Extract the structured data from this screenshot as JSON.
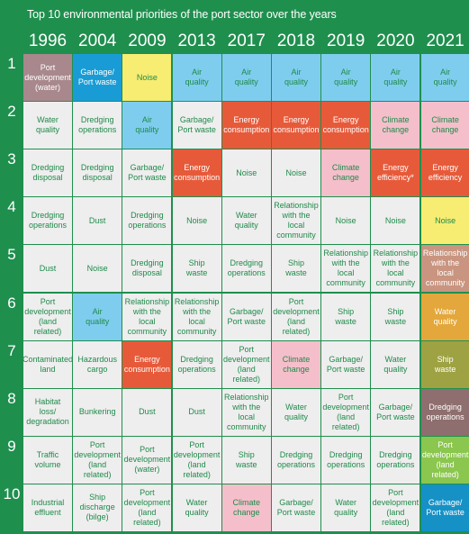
{
  "title": "Top 10  environmental priorities of the port sector over the years",
  "years": [
    "1996",
    "2004",
    "2009",
    "2013",
    "2017",
    "2018",
    "2019",
    "2020",
    "2021"
  ],
  "ranks": [
    "1",
    "2",
    "3",
    "4",
    "5",
    "6",
    "7",
    "8",
    "9",
    "10"
  ],
  "colors": {
    "background": "#1f8f4e",
    "default_cell": "#eeeeee",
    "default_text": "#1f8a4a",
    "air_quality": "#7fcdee",
    "garbage_waste": "#199cd6",
    "noise": "#f7ed72",
    "energy": "#e65a3a",
    "climate": "#f4bfcb",
    "port_development_1996": "#a8888c",
    "relationship_2021": "#c99580",
    "water_quality_2021": "#e3a73b",
    "ship_waste_2021": "#9ea242",
    "dredging_2021": "#8e6e6e",
    "port_dev_2021": "#8bc64e",
    "garbage_2021": "#1591c6"
  },
  "grid": [
    [
      {
        "lines": [
          "Port",
          "development",
          "(water)"
        ],
        "color": "#a8888c",
        "text": "#ffffff"
      },
      {
        "lines": [
          "Garbage/",
          "Port waste"
        ],
        "color": "#199cd6",
        "text": "#ffffff"
      },
      {
        "lines": [
          "Noise"
        ],
        "color": "#f7ed72",
        "text": "#1f8a4a"
      },
      {
        "lines": [
          "Air",
          "quality"
        ],
        "color": "#7fcdee",
        "text": "#1f8a4a"
      },
      {
        "lines": [
          "Air",
          "quality"
        ],
        "color": "#7fcdee",
        "text": "#1f8a4a"
      },
      {
        "lines": [
          "Air",
          "quality"
        ],
        "color": "#7fcdee",
        "text": "#1f8a4a"
      },
      {
        "lines": [
          "Air",
          "quality"
        ],
        "color": "#7fcdee",
        "text": "#1f8a4a"
      },
      {
        "lines": [
          "Air",
          "quality"
        ],
        "color": "#7fcdee",
        "text": "#1f8a4a"
      },
      {
        "lines": [
          "Air",
          "quality"
        ],
        "color": "#7fcdee",
        "text": "#1f8a4a"
      }
    ],
    [
      {
        "lines": [
          "Water",
          "quality"
        ],
        "color": "#eeeeee",
        "text": "#1f8a4a"
      },
      {
        "lines": [
          "Dredging",
          "operations"
        ],
        "color": "#eeeeee",
        "text": "#1f8a4a"
      },
      {
        "lines": [
          "Air",
          "quality"
        ],
        "color": "#7fcdee",
        "text": "#1f8a4a"
      },
      {
        "lines": [
          "Garbage/",
          "Port waste"
        ],
        "color": "#eeeeee",
        "text": "#1f8a4a"
      },
      {
        "lines": [
          "Energy",
          "consumption"
        ],
        "color": "#e65a3a",
        "text": "#ffffff"
      },
      {
        "lines": [
          "Energy",
          "consumption"
        ],
        "color": "#e65a3a",
        "text": "#ffffff"
      },
      {
        "lines": [
          "Energy",
          "consumption"
        ],
        "color": "#e65a3a",
        "text": "#ffffff"
      },
      {
        "lines": [
          "Climate",
          "change"
        ],
        "color": "#f4bfcb",
        "text": "#1f8a4a"
      },
      {
        "lines": [
          "Climate",
          "change"
        ],
        "color": "#f4bfcb",
        "text": "#1f8a4a"
      }
    ],
    [
      {
        "lines": [
          "Dredging",
          "disposal"
        ],
        "color": "#eeeeee",
        "text": "#1f8a4a"
      },
      {
        "lines": [
          "Dredging",
          "disposal"
        ],
        "color": "#eeeeee",
        "text": "#1f8a4a"
      },
      {
        "lines": [
          "Garbage/",
          "Port waste"
        ],
        "color": "#eeeeee",
        "text": "#1f8a4a"
      },
      {
        "lines": [
          "Energy",
          "consumption"
        ],
        "color": "#e65a3a",
        "text": "#ffffff"
      },
      {
        "lines": [
          "Noise"
        ],
        "color": "#eeeeee",
        "text": "#1f8a4a"
      },
      {
        "lines": [
          "Noise"
        ],
        "color": "#eeeeee",
        "text": "#1f8a4a"
      },
      {
        "lines": [
          "Climate",
          "change"
        ],
        "color": "#f4bfcb",
        "text": "#1f8a4a"
      },
      {
        "lines": [
          "Energy",
          "efficiency*"
        ],
        "color": "#e65a3a",
        "text": "#ffffff"
      },
      {
        "lines": [
          "Energy",
          "efficiency"
        ],
        "color": "#e65a3a",
        "text": "#ffffff"
      }
    ],
    [
      {
        "lines": [
          "Dredging",
          "operations"
        ],
        "color": "#eeeeee",
        "text": "#1f8a4a"
      },
      {
        "lines": [
          "Dust"
        ],
        "color": "#eeeeee",
        "text": "#1f8a4a"
      },
      {
        "lines": [
          "Dredging",
          "operations"
        ],
        "color": "#eeeeee",
        "text": "#1f8a4a"
      },
      {
        "lines": [
          "Noise"
        ],
        "color": "#eeeeee",
        "text": "#1f8a4a"
      },
      {
        "lines": [
          "Water",
          "quality"
        ],
        "color": "#eeeeee",
        "text": "#1f8a4a"
      },
      {
        "lines": [
          "Relationship",
          "with the local",
          "community"
        ],
        "color": "#eeeeee",
        "text": "#1f8a4a"
      },
      {
        "lines": [
          "Noise"
        ],
        "color": "#eeeeee",
        "text": "#1f8a4a"
      },
      {
        "lines": [
          "Noise"
        ],
        "color": "#eeeeee",
        "text": "#1f8a4a"
      },
      {
        "lines": [
          "Noise"
        ],
        "color": "#f7ed72",
        "text": "#1f8a4a"
      }
    ],
    [
      {
        "lines": [
          "Dust"
        ],
        "color": "#eeeeee",
        "text": "#1f8a4a"
      },
      {
        "lines": [
          "Noise"
        ],
        "color": "#eeeeee",
        "text": "#1f8a4a"
      },
      {
        "lines": [
          "Dredging",
          "disposal"
        ],
        "color": "#eeeeee",
        "text": "#1f8a4a"
      },
      {
        "lines": [
          "Ship",
          "waste"
        ],
        "color": "#eeeeee",
        "text": "#1f8a4a"
      },
      {
        "lines": [
          "Dredging",
          "operations"
        ],
        "color": "#eeeeee",
        "text": "#1f8a4a"
      },
      {
        "lines": [
          "Ship",
          "waste"
        ],
        "color": "#eeeeee",
        "text": "#1f8a4a"
      },
      {
        "lines": [
          "Relationship",
          "with the local",
          "community"
        ],
        "color": "#eeeeee",
        "text": "#1f8a4a"
      },
      {
        "lines": [
          "Relationship",
          "with the local",
          "community"
        ],
        "color": "#eeeeee",
        "text": "#1f8a4a"
      },
      {
        "lines": [
          "Relationship",
          "with the local",
          "community"
        ],
        "color": "#c99580",
        "text": "#ffffff"
      }
    ],
    [
      {
        "lines": [
          "Port",
          "development",
          "(land related)"
        ],
        "color": "#eeeeee",
        "text": "#1f8a4a"
      },
      {
        "lines": [
          "Air",
          "quality"
        ],
        "color": "#7fcdee",
        "text": "#1f8a4a"
      },
      {
        "lines": [
          "Relationship",
          "with the local",
          "community"
        ],
        "color": "#eeeeee",
        "text": "#1f8a4a"
      },
      {
        "lines": [
          "Relationship",
          "with the local",
          "community"
        ],
        "color": "#eeeeee",
        "text": "#1f8a4a"
      },
      {
        "lines": [
          "Garbage/",
          "Port waste"
        ],
        "color": "#eeeeee",
        "text": "#1f8a4a"
      },
      {
        "lines": [
          "Port",
          "development",
          "(land related)"
        ],
        "color": "#eeeeee",
        "text": "#1f8a4a"
      },
      {
        "lines": [
          "Ship",
          "waste"
        ],
        "color": "#eeeeee",
        "text": "#1f8a4a"
      },
      {
        "lines": [
          "Ship",
          "waste"
        ],
        "color": "#eeeeee",
        "text": "#1f8a4a"
      },
      {
        "lines": [
          "Water",
          "quality"
        ],
        "color": "#e3a73b",
        "text": "#ffffff"
      }
    ],
    [
      {
        "lines": [
          "Contaminated",
          "land"
        ],
        "color": "#eeeeee",
        "text": "#1f8a4a"
      },
      {
        "lines": [
          "Hazardous",
          "cargo"
        ],
        "color": "#eeeeee",
        "text": "#1f8a4a"
      },
      {
        "lines": [
          "Energy",
          "consumption"
        ],
        "color": "#e65a3a",
        "text": "#ffffff"
      },
      {
        "lines": [
          "Dredging",
          "operations"
        ],
        "color": "#eeeeee",
        "text": "#1f8a4a"
      },
      {
        "lines": [
          "Port",
          "development",
          "(land related)"
        ],
        "color": "#eeeeee",
        "text": "#1f8a4a"
      },
      {
        "lines": [
          "Climate",
          "change"
        ],
        "color": "#f4bfcb",
        "text": "#1f8a4a"
      },
      {
        "lines": [
          "Garbage/",
          "Port waste"
        ],
        "color": "#eeeeee",
        "text": "#1f8a4a"
      },
      {
        "lines": [
          "Water",
          "quality"
        ],
        "color": "#eeeeee",
        "text": "#1f8a4a"
      },
      {
        "lines": [
          "Ship",
          "waste"
        ],
        "color": "#9ea242",
        "text": "#ffffff"
      }
    ],
    [
      {
        "lines": [
          "Habitat",
          "loss/",
          "degradation"
        ],
        "color": "#eeeeee",
        "text": "#1f8a4a"
      },
      {
        "lines": [
          "Bunkering"
        ],
        "color": "#eeeeee",
        "text": "#1f8a4a"
      },
      {
        "lines": [
          "Dust"
        ],
        "color": "#eeeeee",
        "text": "#1f8a4a"
      },
      {
        "lines": [
          "Dust"
        ],
        "color": "#eeeeee",
        "text": "#1f8a4a"
      },
      {
        "lines": [
          "Relationship",
          "with the local",
          "community"
        ],
        "color": "#eeeeee",
        "text": "#1f8a4a"
      },
      {
        "lines": [
          "Water",
          "quality"
        ],
        "color": "#eeeeee",
        "text": "#1f8a4a"
      },
      {
        "lines": [
          "Port",
          "development",
          "(land related)"
        ],
        "color": "#eeeeee",
        "text": "#1f8a4a"
      },
      {
        "lines": [
          "Garbage/",
          "Port waste"
        ],
        "color": "#eeeeee",
        "text": "#1f8a4a"
      },
      {
        "lines": [
          "Dredging",
          "operations"
        ],
        "color": "#8e6e6e",
        "text": "#ffffff"
      }
    ],
    [
      {
        "lines": [
          "Traffic",
          "volume"
        ],
        "color": "#eeeeee",
        "text": "#1f8a4a"
      },
      {
        "lines": [
          "Port",
          "development",
          "(land related)"
        ],
        "color": "#eeeeee",
        "text": "#1f8a4a"
      },
      {
        "lines": [
          "Port",
          "development",
          "(water)"
        ],
        "color": "#eeeeee",
        "text": "#1f8a4a"
      },
      {
        "lines": [
          "Port",
          "development",
          "(land related)"
        ],
        "color": "#eeeeee",
        "text": "#1f8a4a"
      },
      {
        "lines": [
          "Ship",
          "waste"
        ],
        "color": "#eeeeee",
        "text": "#1f8a4a"
      },
      {
        "lines": [
          "Dredging",
          "operations"
        ],
        "color": "#eeeeee",
        "text": "#1f8a4a"
      },
      {
        "lines": [
          "Dredging",
          "operations"
        ],
        "color": "#eeeeee",
        "text": "#1f8a4a"
      },
      {
        "lines": [
          "Dredging",
          "operations"
        ],
        "color": "#eeeeee",
        "text": "#1f8a4a"
      },
      {
        "lines": [
          "Port",
          "development",
          "(land related)"
        ],
        "color": "#8bc64e",
        "text": "#ffffff"
      }
    ],
    [
      {
        "lines": [
          "Industrial",
          "effluent"
        ],
        "color": "#eeeeee",
        "text": "#1f8a4a"
      },
      {
        "lines": [
          "Ship",
          "discharge",
          "(bilge)"
        ],
        "color": "#eeeeee",
        "text": "#1f8a4a"
      },
      {
        "lines": [
          "Port",
          "development",
          "(land related)"
        ],
        "color": "#eeeeee",
        "text": "#1f8a4a"
      },
      {
        "lines": [
          "Water",
          "quality"
        ],
        "color": "#eeeeee",
        "text": "#1f8a4a"
      },
      {
        "lines": [
          "Climate",
          "change"
        ],
        "color": "#f4bfcb",
        "text": "#1f8a4a"
      },
      {
        "lines": [
          "Garbage/",
          "Port waste"
        ],
        "color": "#eeeeee",
        "text": "#1f8a4a"
      },
      {
        "lines": [
          "Water",
          "quality"
        ],
        "color": "#eeeeee",
        "text": "#1f8a4a"
      },
      {
        "lines": [
          "Port",
          "development",
          "(land related)"
        ],
        "color": "#eeeeee",
        "text": "#1f8a4a"
      },
      {
        "lines": [
          "Garbage/",
          "Port waste"
        ],
        "color": "#1591c6",
        "text": "#ffffff"
      }
    ]
  ]
}
